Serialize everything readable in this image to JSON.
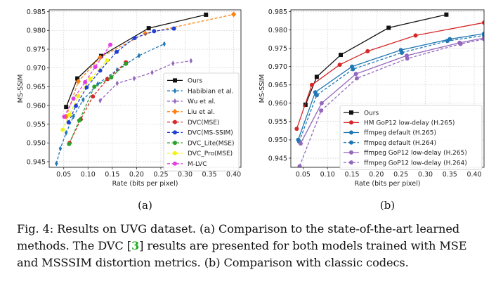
{
  "chart_data": [
    {
      "type": "line",
      "panel_label": "(a)",
      "xlabel": "Rate (bits per pixel)",
      "ylabel": "MS-SSIM",
      "xlim": [
        0.02,
        0.415
      ],
      "ylim": [
        0.9435,
        0.9855
      ],
      "xticks": [
        0.05,
        0.1,
        0.15,
        0.2,
        0.25,
        0.3,
        0.35,
        0.4
      ],
      "xtick_labels": [
        "0.05",
        "0.10",
        "0.15",
        "0.20",
        "0.25",
        "0.30",
        "0.35",
        "0.40"
      ],
      "yticks": [
        0.945,
        0.95,
        0.955,
        0.96,
        0.965,
        0.97,
        0.975,
        0.98,
        0.985
      ],
      "ytick_labels": [
        "0.945",
        "0.950",
        "0.955",
        "0.960",
        "0.965",
        "0.970",
        "0.975",
        "0.980",
        "0.985"
      ],
      "grid": true,
      "legend_position": "bottom-right",
      "series": [
        {
          "name": "Ours",
          "color": "#111111",
          "marker": "square",
          "dash": "solid",
          "x": [
            0.055,
            0.078,
            0.127,
            0.225,
            0.343
          ],
          "y": [
            0.9596,
            0.9672,
            0.9732,
            0.9806,
            0.9842
          ]
        },
        {
          "name": "Habibian et al.",
          "color": "#1f77b4",
          "marker": "thin-diamond",
          "dash": "dashed",
          "x": [
            0.035,
            0.043,
            0.055,
            0.07,
            0.09,
            0.12,
            0.16,
            0.205,
            0.257
          ],
          "y": [
            0.9445,
            0.9485,
            0.9527,
            0.9571,
            0.9615,
            0.9657,
            0.9695,
            0.9733,
            0.9764
          ]
        },
        {
          "name": "Wu et al.",
          "color": "#9467bd",
          "marker": "thin-diamond",
          "dash": "dashed",
          "x": [
            0.125,
            0.16,
            0.195,
            0.232,
            0.275,
            0.312
          ],
          "y": [
            0.9613,
            0.9659,
            0.9672,
            0.9688,
            0.9712,
            0.9719
          ]
        },
        {
          "name": "Liu et al.",
          "color": "#ff7f0e",
          "marker": "diamond",
          "dash": "dashed",
          "x": [
            0.055,
            0.08,
            0.125,
            0.218,
            0.4
          ],
          "y": [
            0.957,
            0.9664,
            0.9728,
            0.9792,
            0.9843
          ]
        },
        {
          "name": "DVC(MSE)",
          "color": "#d62728",
          "marker": "circle",
          "dash": "dashed",
          "x": [
            0.062,
            0.085,
            0.11,
            0.14,
            0.178
          ],
          "y": [
            0.95,
            0.9563,
            0.9624,
            0.967,
            0.9715
          ]
        },
        {
          "name": "DVC(MS-SSIM)",
          "color": "#1f3fd6",
          "marker": "circle",
          "dash": "dashed",
          "x": [
            0.06,
            0.075,
            0.097,
            0.125,
            0.159,
            0.196,
            0.236,
            0.277
          ],
          "y": [
            0.9555,
            0.9599,
            0.9648,
            0.9693,
            0.9743,
            0.978,
            0.9798,
            0.9805
          ]
        },
        {
          "name": "DVC_Lite(MSE)",
          "color": "#2ca02c",
          "marker": "circle",
          "dash": "dashed",
          "x": [
            0.061,
            0.082,
            0.113,
            0.148,
            0.178
          ],
          "y": [
            0.9497,
            0.956,
            0.965,
            0.9675,
            0.9711
          ]
        },
        {
          "name": "DVC_Pro(MSE)",
          "color": "#f2f21a",
          "marker": "circle",
          "dash": "dashed",
          "x": [
            0.048,
            0.062,
            0.08,
            0.105,
            0.139
          ],
          "y": [
            0.9535,
            0.9575,
            0.9625,
            0.9671,
            0.972
          ]
        },
        {
          "name": "M-LVC",
          "color": "#e23ee2",
          "marker": "circle",
          "dash": "dashed",
          "x": [
            0.051,
            0.07,
            0.094,
            0.115,
            0.146
          ],
          "y": [
            0.957,
            0.9618,
            0.9662,
            0.9703,
            0.9762
          ]
        }
      ]
    },
    {
      "type": "line",
      "panel_label": "(b)",
      "xlabel": "Rate (bits per pixel)",
      "ylabel": "MS-SSIM",
      "xlim": [
        0.025,
        0.42
      ],
      "ylim": [
        0.9425,
        0.9855
      ],
      "xticks": [
        0.05,
        0.1,
        0.15,
        0.2,
        0.25,
        0.3,
        0.35,
        0.4
      ],
      "xtick_labels": [
        "0.05",
        "0.10",
        "0.15",
        "0.20",
        "0.25",
        "0.30",
        "0.35",
        "0.40"
      ],
      "yticks": [
        0.945,
        0.95,
        0.955,
        0.96,
        0.965,
        0.97,
        0.975,
        0.98,
        0.985
      ],
      "ytick_labels": [
        "0.945",
        "0.950",
        "0.955",
        "0.960",
        "0.965",
        "0.970",
        "0.975",
        "0.980",
        "0.985"
      ],
      "grid": true,
      "legend_position": "bottom-right",
      "series": [
        {
          "name": "Ours",
          "color": "#111111",
          "marker": "square",
          "dash": "solid",
          "x": [
            0.055,
            0.078,
            0.127,
            0.225,
            0.343
          ],
          "y": [
            0.9596,
            0.9672,
            0.9732,
            0.9806,
            0.9842
          ]
        },
        {
          "name": "HM GoP12 low-delay (H.265)",
          "color": "#d62728",
          "marker": "circle",
          "dash": "solid",
          "x": [
            0.037,
            0.068,
            0.125,
            0.182,
            0.28,
            0.42
          ],
          "y": [
            0.953,
            0.965,
            0.9705,
            0.9742,
            0.9785,
            0.982
          ]
        },
        {
          "name": "ffmpeg default (H.265)",
          "color": "#1f77b4",
          "marker": "circle",
          "dash": "solid",
          "x": [
            0.04,
            0.075,
            0.15,
            0.25,
            0.35,
            0.42
          ],
          "y": [
            0.95,
            0.963,
            0.97,
            0.9745,
            0.9775,
            0.979
          ]
        },
        {
          "name": "ffmpeg default (H.264)",
          "color": "#1f77b4",
          "marker": "circle",
          "dash": "dashed",
          "x": [
            0.042,
            0.078,
            0.152,
            0.252,
            0.345,
            0.42
          ],
          "y": [
            0.9495,
            0.9622,
            0.9693,
            0.9738,
            0.977,
            0.9785
          ]
        },
        {
          "name": "ffmpeg GoP12 low-delay (H.265)",
          "color": "#9467bd",
          "marker": "circle",
          "dash": "solid",
          "x": [
            0.045,
            0.088,
            0.158,
            0.262,
            0.37,
            0.42
          ],
          "y": [
            0.949,
            0.96,
            0.968,
            0.973,
            0.9765,
            0.9778
          ]
        },
        {
          "name": "ffmpeg GoP12 low-delay (H.264)",
          "color": "#9467bd",
          "marker": "circle",
          "dash": "dashed",
          "x": [
            0.043,
            0.087,
            0.16,
            0.263,
            0.372,
            0.42
          ],
          "y": [
            0.9428,
            0.958,
            0.9668,
            0.9722,
            0.9762,
            0.9775
          ]
        }
      ]
    }
  ],
  "caption": {
    "prefix": "Fig. 4: Results on UVG dataset. (a) Comparison to the state-of-the-art learned",
    "line2_before": "methods.  The DVC [",
    "cite": "3",
    "line2_after": "] results are presented for both models trained with MSE",
    "line3": "and MSSSIM distortion metrics. (b) Comparison with classic codecs."
  }
}
